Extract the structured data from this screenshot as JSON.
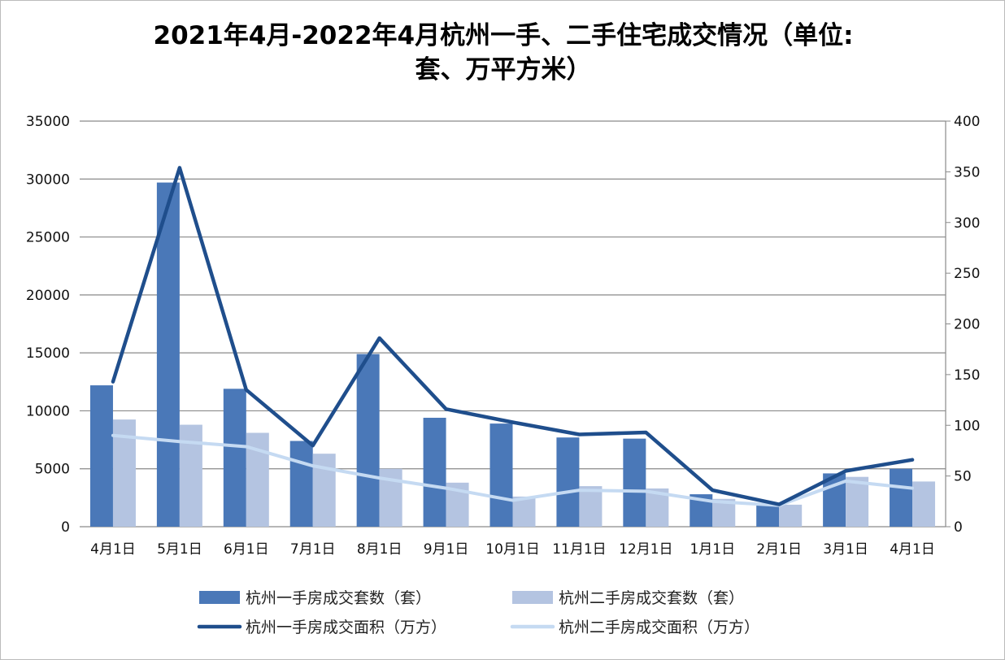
{
  "chart_data": {
    "type": "bar+line",
    "title_lines": [
      "2021年4月-2022年4月杭州一手、二手住宅成交情况（单位:",
      "套、万平方米）"
    ],
    "categories": [
      "4月1日",
      "5月1日",
      "6月1日",
      "7月1日",
      "8月1日",
      "9月1日",
      "10月1日",
      "11月1日",
      "12月1日",
      "1月1日",
      "2月1日",
      "3月1日",
      "4月1日"
    ],
    "y_left": {
      "range": [
        0,
        35000
      ],
      "ticks": [
        "0",
        "5000",
        "10000",
        "15000",
        "20000",
        "25000",
        "30000",
        "35000"
      ]
    },
    "y_right": {
      "range": [
        0,
        400
      ],
      "ticks": [
        "0",
        "50",
        "100",
        "150",
        "200",
        "250",
        "300",
        "350",
        "400"
      ]
    },
    "grid": true,
    "legend_position": "bottom",
    "series": [
      {
        "name": "杭州一手房成交套数（套）",
        "type": "bar",
        "axis": "left",
        "color": "#4a78b8",
        "values": [
          12200,
          29700,
          11900,
          7400,
          14900,
          9400,
          8900,
          7700,
          7600,
          2800,
          2000,
          4600,
          5000
        ]
      },
      {
        "name": "杭州二手房成交套数（套）",
        "type": "bar",
        "axis": "left",
        "color": "#b4c4e1",
        "values": [
          9250,
          8800,
          8100,
          6300,
          5000,
          3800,
          2600,
          3500,
          3300,
          2400,
          1900,
          4300,
          3900
        ]
      },
      {
        "name": "杭州一手房成交面积（万方）",
        "type": "line",
        "axis": "right",
        "color": "#1f4e8c",
        "values": [
          143,
          354,
          135,
          80,
          186,
          116,
          103,
          91,
          93,
          36,
          22,
          55,
          66
        ]
      },
      {
        "name": "杭州二手房成交面积（万方）",
        "type": "line",
        "axis": "right",
        "color": "#c5daf2",
        "values": [
          90,
          84,
          79,
          60,
          48,
          38,
          26,
          36,
          35,
          25,
          21,
          45,
          38
        ]
      }
    ]
  }
}
